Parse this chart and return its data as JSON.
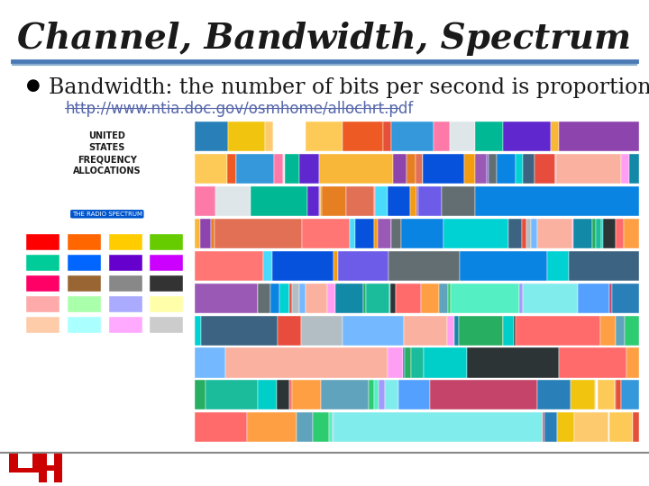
{
  "title": "Channel, Bandwidth, Spectrum",
  "bullet_text": "Bandwidth: the number of bits per second is proportional to B",
  "link_text": "http://www.ntia.doc.gov/osmhome/allochrt.pdf",
  "bg_color": "#ffffff",
  "title_color": "#1a1a1a",
  "title_fontsize": 28,
  "bullet_fontsize": 17,
  "link_fontsize": 12,
  "link_color": "#5566aa",
  "separator_color_top": "#4a7ab5",
  "separator_color_bottom": "#8ab0d0",
  "bottom_line_color": "#888888",
  "uh_logo_color": "#cc0000"
}
